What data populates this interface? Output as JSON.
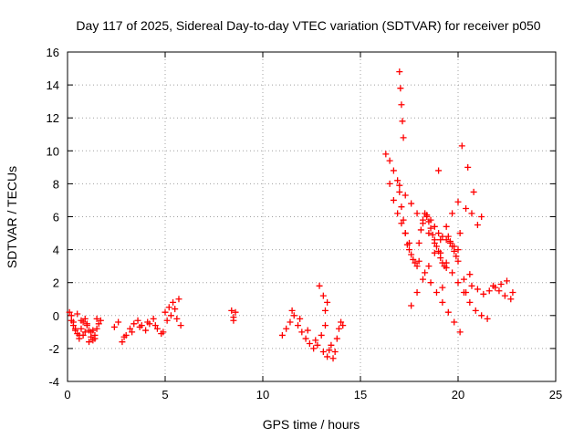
{
  "chart_data": {
    "type": "scatter",
    "title": "Day 117 of 2025, Sidereal Day-to-day VTEC variation (SDTVAR) for receiver p050",
    "xlabel": "GPS time / hours",
    "ylabel": "SDTVAR / TECUs",
    "xlim": [
      0,
      25
    ],
    "ylim": [
      -4,
      16
    ],
    "xticks": [
      "0",
      "5",
      "10",
      "15",
      "20",
      "25"
    ],
    "yticks": [
      "-4",
      "-2",
      "0",
      "2",
      "4",
      "6",
      "8",
      "10",
      "12",
      "14",
      "16"
    ],
    "grid": true,
    "marker": "+",
    "series": [
      {
        "name": "SDTVAR",
        "color": "#ff0000",
        "x": [
          0.1,
          0.2,
          0.3,
          0.4,
          0.5,
          0.6,
          0.7,
          0.8,
          0.9,
          1.0,
          1.1,
          1.2,
          1.3,
          1.4,
          1.5,
          1.6,
          1.7,
          0.2,
          0.4,
          0.6,
          0.8,
          1.0,
          1.2,
          1.4,
          0.3,
          0.5,
          0.7,
          0.9,
          1.1,
          1.3,
          1.5,
          2.4,
          2.6,
          2.8,
          3.0,
          3.2,
          3.4,
          3.6,
          3.8,
          4.0,
          4.2,
          4.4,
          4.6,
          4.8,
          2.9,
          3.3,
          3.7,
          4.1,
          4.5,
          4.9,
          5.0,
          5.2,
          5.4,
          5.6,
          5.8,
          5.1,
          5.3,
          5.5,
          5.7,
          8.4,
          8.5,
          8.6,
          8.5,
          11.0,
          11.2,
          11.4,
          11.6,
          11.8,
          12.0,
          12.2,
          12.4,
          12.6,
          12.8,
          13.0,
          13.2,
          11.5,
          11.9,
          12.3,
          12.7,
          13.1,
          13.3,
          13.4,
          13.5,
          13.6,
          13.7,
          13.8,
          13.9,
          14.0,
          14.1,
          13.2,
          13.3,
          13.1,
          12.9,
          16.3,
          16.5,
          16.7,
          16.9,
          17.0,
          17.1,
          17.2,
          17.3,
          17.4,
          17.5,
          17.6,
          17.7,
          17.8,
          17.9,
          18.0,
          18.1,
          18.2,
          18.3,
          18.4,
          18.5,
          18.6,
          18.7,
          18.8,
          18.9,
          19.0,
          19.1,
          19.2,
          19.3,
          19.4,
          19.5,
          19.6,
          19.7,
          19.8,
          19.9,
          20.0,
          17.0,
          17.05,
          17.1,
          17.15,
          17.2,
          16.5,
          16.7,
          16.9,
          17.1,
          17.3,
          17.5,
          18.0,
          18.3,
          18.6,
          18.9,
          19.2,
          19.5,
          19.8,
          20.1,
          20.4,
          20.7,
          21.0,
          21.3,
          21.6,
          21.9,
          22.2,
          22.5,
          22.8,
          20.2,
          20.5,
          20.8,
          21.2,
          17.6,
          17.9,
          18.2,
          18.5,
          18.8,
          19.1,
          19.4,
          19.7,
          20.0,
          18.4,
          18.6,
          18.8,
          19.0,
          19.2,
          19.4,
          19.6,
          19.8,
          20.0,
          17.0,
          17.3,
          17.6,
          17.9,
          18.2,
          18.5,
          18.8,
          19.1,
          19.4,
          19.7,
          20.0,
          20.3,
          20.6,
          20.9,
          21.2,
          21.5,
          21.8,
          22.1,
          22.4,
          22.7,
          19.2,
          19.0,
          20.3,
          20.6,
          20.1,
          20.4,
          20.7,
          21.0
        ],
        "y": [
          0.2,
          -0.3,
          -0.6,
          -0.9,
          -1.1,
          -1.2,
          -0.8,
          -0.4,
          -0.2,
          -0.5,
          -0.9,
          -1.3,
          -1.5,
          -1.2,
          -0.8,
          -0.5,
          -0.3,
          0.0,
          -0.8,
          -1.4,
          -1.2,
          -0.6,
          -1.0,
          -1.4,
          -0.4,
          0.1,
          -0.3,
          -1.0,
          -1.6,
          -0.9,
          -0.2,
          -0.7,
          -0.4,
          -1.6,
          -1.2,
          -0.8,
          -0.5,
          -0.3,
          -0.6,
          -0.9,
          -0.5,
          -0.2,
          -0.8,
          -1.1,
          -1.3,
          -1.0,
          -0.7,
          -0.4,
          -0.6,
          -1.0,
          0.2,
          0.5,
          0.8,
          -0.2,
          -0.6,
          -0.3,
          0.0,
          0.4,
          1.0,
          0.3,
          -0.1,
          0.2,
          -0.3,
          -1.2,
          -0.8,
          -0.4,
          0.0,
          -0.6,
          -1.0,
          -1.4,
          -1.7,
          -2.0,
          -1.8,
          -1.2,
          -0.6,
          0.3,
          -0.2,
          -0.9,
          -1.5,
          -2.2,
          -2.5,
          -2.1,
          -1.8,
          -2.6,
          -2.2,
          -1.4,
          -0.8,
          -0.4,
          -0.6,
          0.3,
          0.8,
          1.2,
          1.8,
          9.8,
          9.4,
          8.8,
          8.2,
          7.5,
          6.6,
          5.8,
          5.0,
          4.3,
          4.0,
          3.7,
          3.4,
          3.2,
          3.0,
          4.4,
          5.2,
          5.8,
          6.2,
          6.0,
          5.7,
          5.3,
          4.9,
          4.6,
          4.2,
          3.9,
          3.5,
          3.2,
          3.0,
          2.9,
          4.8,
          4.5,
          4.2,
          3.9,
          3.6,
          3.3,
          14.8,
          13.8,
          12.8,
          11.8,
          10.8,
          8.0,
          7.0,
          6.2,
          5.6,
          5.0,
          4.4,
          3.3,
          2.6,
          2.0,
          1.4,
          0.8,
          0.2,
          -0.4,
          -1.0,
          1.4,
          1.8,
          1.6,
          1.3,
          1.5,
          1.7,
          1.9,
          2.1,
          1.4,
          10.3,
          9.0,
          7.5,
          6.0,
          0.6,
          1.4,
          2.2,
          3.0,
          3.8,
          4.6,
          5.4,
          6.2,
          6.9,
          6.1,
          5.8,
          5.4,
          5.0,
          4.8,
          4.6,
          4.4,
          4.2,
          4.0,
          7.9,
          7.3,
          6.8,
          6.2,
          5.6,
          5.0,
          4.4,
          3.8,
          3.2,
          2.6,
          2.0,
          1.4,
          0.8,
          0.3,
          0.0,
          -0.2,
          1.8,
          1.5,
          1.2,
          1.0,
          1.7,
          8.8,
          2.2,
          2.5,
          5.0,
          6.5,
          6.2,
          5.5
        ]
      }
    ]
  }
}
